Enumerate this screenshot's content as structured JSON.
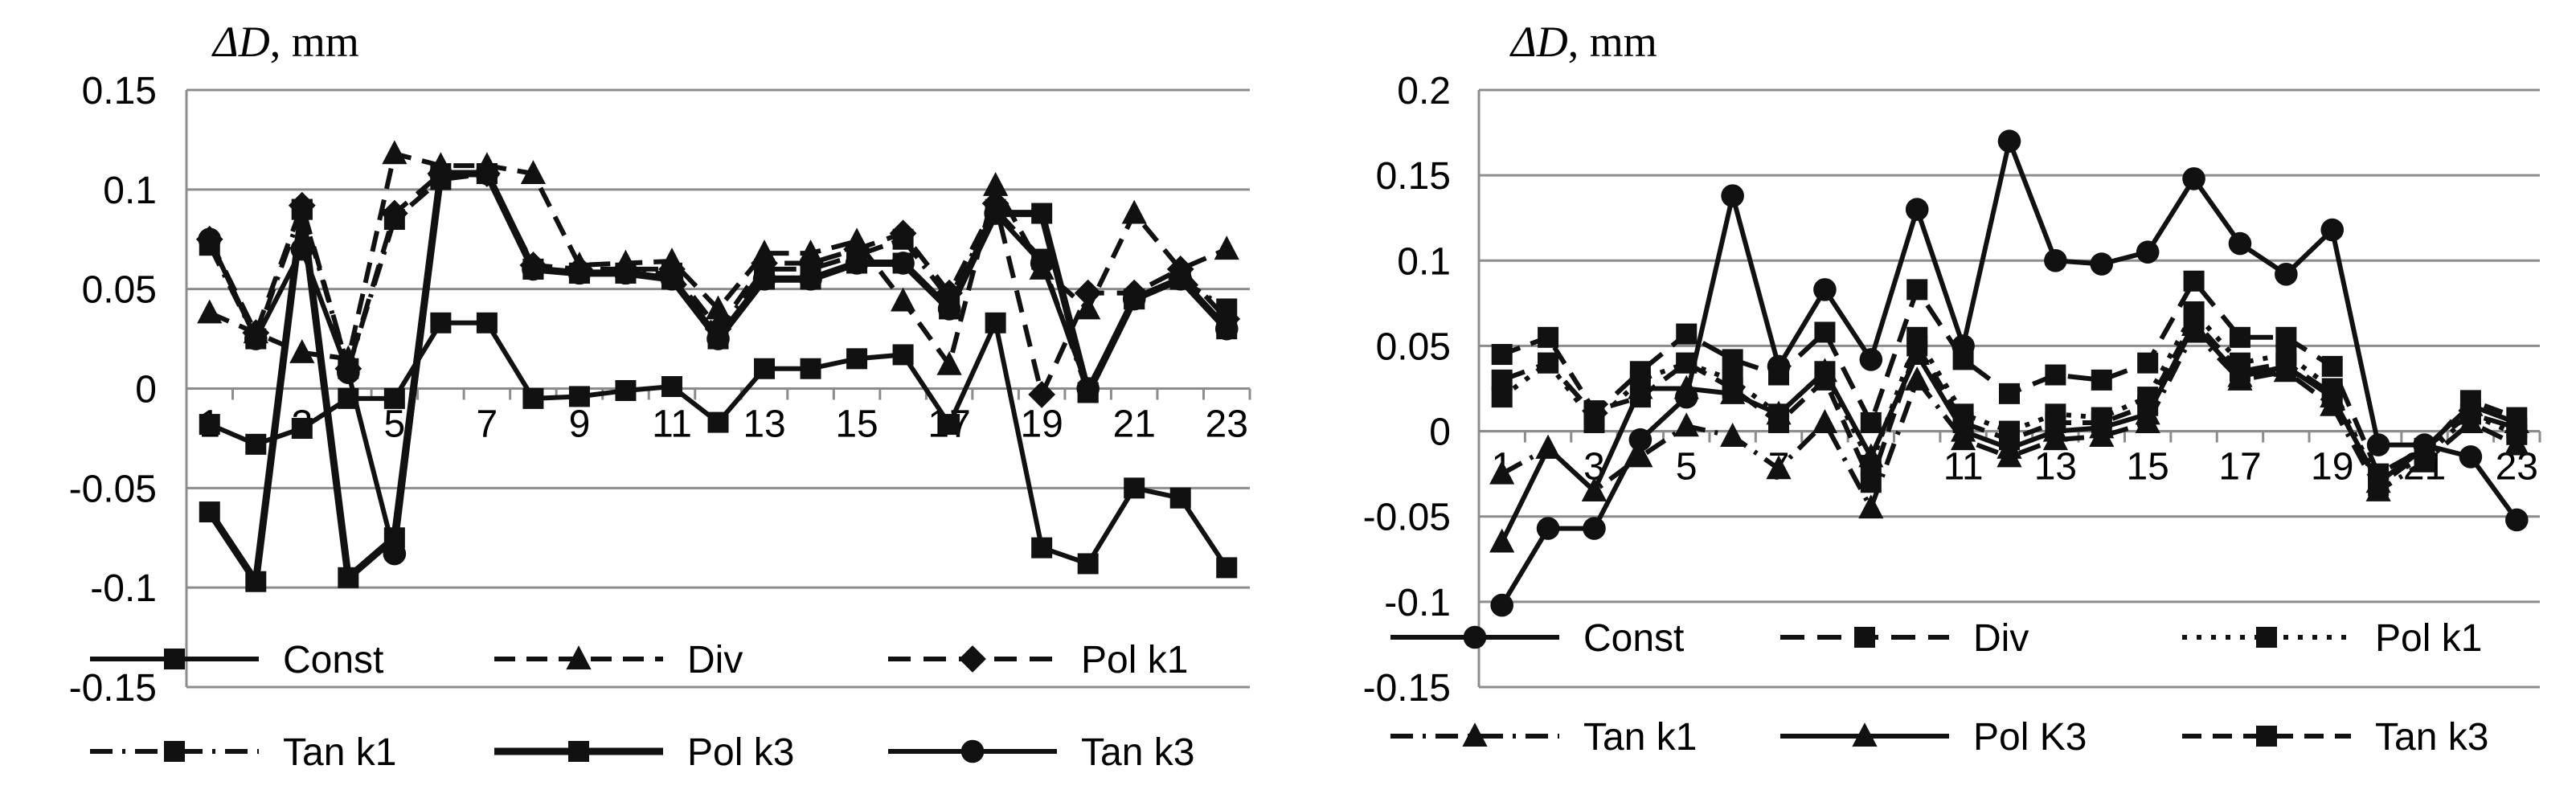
{
  "chart_data": [
    {
      "type": "line",
      "title": "ΔD, mm",
      "title_parts": {
        "symbol": "ΔD",
        "unit": ", mm"
      },
      "xlabel": "",
      "ylabel": "ΔD, mm",
      "ylim": [
        -0.15,
        0.15
      ],
      "ystep": 0.05,
      "ytick_labels": [
        "0.15",
        "0.1",
        "0.05",
        "0",
        "-0.05",
        "-0.1",
        "-0.15"
      ],
      "xtick_labels": [
        "1",
        "3",
        "5",
        "7",
        "9",
        "11",
        "13",
        "15",
        "17",
        "19",
        "21",
        "23"
      ],
      "x": [
        1,
        2,
        3,
        4,
        5,
        6,
        7,
        8,
        9,
        10,
        11,
        12,
        13,
        14,
        15,
        16,
        17,
        18,
        19,
        20,
        21,
        22,
        23
      ],
      "grid": true,
      "legend": "bottom",
      "series": [
        {
          "name": "Const",
          "values": [
            -0.018,
            -0.028,
            -0.02,
            -0.005,
            -0.005,
            0.033,
            0.033,
            -0.005,
            -0.004,
            -0.001,
            0.001,
            -0.017,
            0.01,
            0.01,
            0.015,
            0.017,
            -0.018,
            0.033,
            -0.08,
            -0.088,
            -0.05,
            -0.055,
            -0.09
          ]
        },
        {
          "name": "Div",
          "values": [
            0.038,
            0.028,
            0.018,
            0.015,
            0.118,
            0.112,
            0.112,
            0.108,
            0.062,
            0.063,
            0.064,
            0.04,
            0.068,
            0.068,
            0.074,
            0.044,
            0.012,
            0.102,
            0.06,
            0.04,
            0.088,
            0.06,
            0.07
          ]
        },
        {
          "name": "Pol k1",
          "values": [
            0.075,
            0.028,
            0.092,
            0.01,
            0.088,
            0.108,
            0.108,
            0.062,
            0.06,
            0.06,
            0.06,
            0.03,
            0.063,
            0.063,
            0.07,
            0.078,
            0.048,
            0.093,
            -0.003,
            0.048,
            0.048,
            0.06,
            0.035
          ]
        },
        {
          "name": "Tan k1",
          "values": [
            0.072,
            0.025,
            0.09,
            0.01,
            0.085,
            0.105,
            0.108,
            0.06,
            0.058,
            0.058,
            0.058,
            0.028,
            0.06,
            0.06,
            0.067,
            0.075,
            0.045,
            0.09,
            0.065,
            -0.002,
            0.045,
            0.055,
            0.04
          ]
        },
        {
          "name": "Pol k3",
          "values": [
            -0.062,
            -0.097,
            0.09,
            -0.095,
            -0.075,
            0.108,
            0.108,
            0.06,
            0.058,
            0.058,
            0.055,
            0.025,
            0.055,
            0.055,
            0.063,
            0.063,
            0.04,
            0.088,
            0.088,
            -0.002,
            0.045,
            0.055,
            0.03
          ]
        },
        {
          "name": "Tan k3",
          "values": [
            0.075,
            0.025,
            0.07,
            0.008,
            -0.083,
            0.108,
            0.108,
            0.06,
            0.058,
            0.058,
            0.055,
            0.025,
            0.055,
            0.055,
            0.063,
            0.063,
            0.04,
            0.088,
            0.063,
            0.0,
            0.045,
            0.055,
            0.03
          ]
        }
      ]
    },
    {
      "type": "line",
      "title": "ΔD, mm",
      "title_parts": {
        "symbol": "ΔD",
        "unit": ", mm"
      },
      "xlabel": "",
      "ylabel": "ΔD, mm",
      "ylim": [
        -0.15,
        0.2
      ],
      "ystep": 0.05,
      "ytick_labels": [
        "0.2",
        "0.15",
        "0.1",
        "0.05",
        "0",
        "-0.05",
        "-0.1",
        "-0.15"
      ],
      "xtick_labels": [
        "1",
        "3",
        "5",
        "7",
        "9",
        "11",
        "13",
        "15",
        "17",
        "19",
        "21",
        "23"
      ],
      "x": [
        1,
        2,
        3,
        4,
        5,
        6,
        7,
        8,
        9,
        10,
        11,
        12,
        13,
        14,
        15,
        16,
        17,
        18,
        19,
        20,
        21,
        22,
        23
      ],
      "grid": true,
      "legend": "bottom",
      "series": [
        {
          "name": "Const",
          "values": [
            -0.102,
            -0.057,
            -0.057,
            -0.005,
            0.02,
            0.138,
            0.038,
            0.083,
            0.042,
            0.13,
            0.05,
            0.17,
            0.1,
            0.098,
            0.105,
            0.148,
            0.11,
            0.092,
            0.118,
            -0.008,
            -0.008,
            -0.015,
            -0.052
          ]
        },
        {
          "name": "Div",
          "values": [
            0.03,
            0.04,
            0.01,
            0.035,
            0.057,
            0.042,
            0.033,
            0.058,
            0.005,
            0.083,
            0.042,
            0.022,
            0.033,
            0.03,
            0.04,
            0.088,
            0.055,
            0.055,
            0.038,
            -0.025,
            -0.01,
            0.01,
            0.002
          ]
        },
        {
          "name": "Pol k1",
          "values": [
            0.02,
            0.04,
            0.005,
            0.03,
            0.04,
            0.03,
            0.01,
            0.035,
            -0.02,
            0.055,
            0.01,
            0.0,
            0.01,
            0.008,
            0.02,
            0.07,
            0.04,
            0.045,
            0.025,
            -0.03,
            -0.015,
            0.01,
            -0.002
          ]
        },
        {
          "name": "Tan k1",
          "values": [
            -0.025,
            -0.01,
            -0.035,
            -0.015,
            0.003,
            -0.003,
            -0.022,
            0.005,
            -0.045,
            0.03,
            -0.005,
            -0.015,
            -0.005,
            -0.003,
            0.005,
            0.058,
            0.03,
            0.035,
            0.015,
            -0.035,
            -0.018,
            0.005,
            -0.008
          ]
        },
        {
          "name": "Pol K3",
          "values": [
            -0.065,
            -0.01,
            -0.035,
            0.025,
            0.025,
            0.022,
            0.01,
            0.035,
            -0.015,
            0.045,
            0.0,
            -0.01,
            0.0,
            0.002,
            0.01,
            0.062,
            0.032,
            0.038,
            0.02,
            -0.03,
            -0.01,
            0.015,
            0.005
          ]
        },
        {
          "name": "Tan k3",
          "values": [
            0.045,
            0.055,
            0.012,
            0.02,
            0.04,
            0.025,
            0.005,
            0.03,
            -0.03,
            0.05,
            0.005,
            -0.005,
            0.005,
            0.005,
            0.015,
            0.065,
            0.035,
            0.04,
            0.022,
            -0.032,
            -0.012,
            0.018,
            0.008
          ]
        }
      ]
    }
  ]
}
